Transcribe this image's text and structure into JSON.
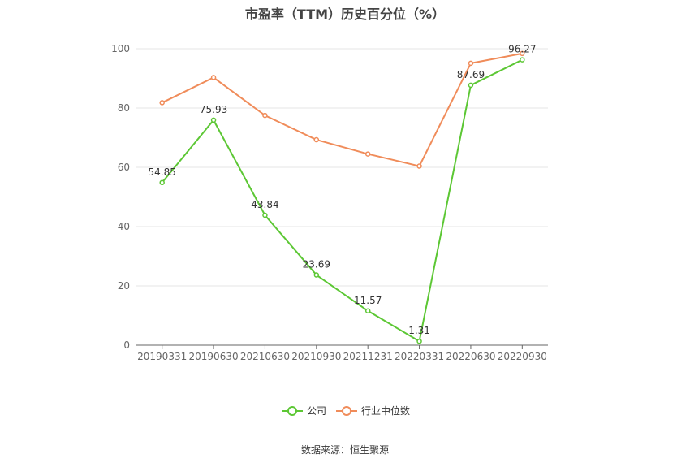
{
  "title": "市盈率（TTM）历史百分位（%）",
  "source": "数据来源：恒生聚源",
  "chart_data": {
    "type": "line",
    "title": "市盈率（TTM）历史百分位（%）",
    "categories": [
      "20190331",
      "20190630",
      "20210630",
      "20210930",
      "20211231",
      "20220331",
      "20220630",
      "20220930"
    ],
    "ylim": [
      0,
      100
    ],
    "yticks": [
      0,
      20,
      40,
      60,
      80,
      100
    ],
    "grid": true,
    "legend_position": "bottom",
    "series": [
      {
        "name": "公司",
        "color": "#5cc734",
        "values": [
          54.85,
          75.93,
          43.84,
          23.69,
          11.57,
          1.31,
          87.69,
          96.27
        ],
        "labels": [
          "54.85",
          "75.93",
          "43.84",
          "23.69",
          "11.57",
          "1.31",
          "87.69",
          "96.27"
        ]
      },
      {
        "name": "行业中位数",
        "color": "#f08c5a",
        "values": [
          81.8,
          90.3,
          77.5,
          69.3,
          64.5,
          60.4,
          95.1,
          98.4
        ]
      }
    ]
  }
}
